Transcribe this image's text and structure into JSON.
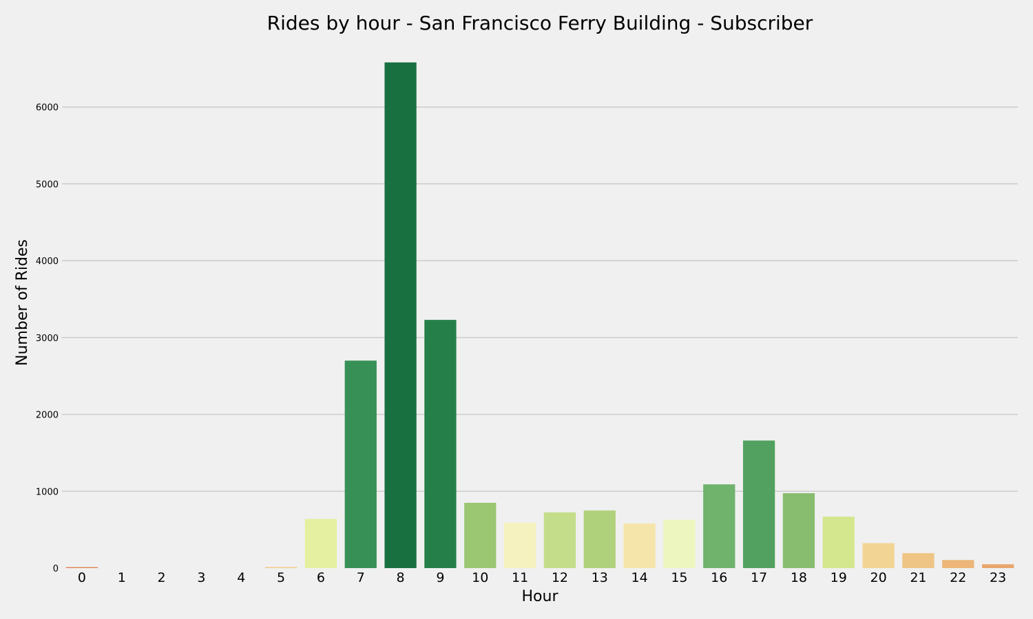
{
  "chart_data": {
    "type": "bar",
    "title": "Rides by hour - San Francisco Ferry Building - Subscriber",
    "xlabel": "Hour",
    "ylabel": "Number of Rides",
    "categories": [
      "0",
      "1",
      "2",
      "3",
      "4",
      "5",
      "6",
      "7",
      "8",
      "9",
      "10",
      "11",
      "12",
      "13",
      "14",
      "15",
      "16",
      "17",
      "18",
      "19",
      "20",
      "21",
      "22",
      "23"
    ],
    "values": [
      12,
      0,
      0,
      0,
      0,
      8,
      640,
      2700,
      6580,
      3230,
      850,
      590,
      725,
      750,
      580,
      630,
      1090,
      1660,
      975,
      670,
      325,
      195,
      105,
      50
    ],
    "colors": [
      "#e08a5c",
      "#e89866",
      "#eba56f",
      "#eeb27a",
      "#f0bd80",
      "#f3c98a",
      "#e5f0a0",
      "#379157",
      "#187040",
      "#248048",
      "#9bc773",
      "#f5f2bf",
      "#c4dd8a",
      "#b0d17c",
      "#f5e5ab",
      "#eef6c0",
      "#6fb36c",
      "#52a160",
      "#88bd6f",
      "#d4e68e",
      "#f2d595",
      "#efc585",
      "#ecb678",
      "#e9a66c"
    ],
    "ylim": [
      0,
      6900
    ],
    "yticks": [
      0,
      1000,
      2000,
      3000,
      4000,
      5000,
      6000
    ],
    "grid": true,
    "gridColor": "#cbcbcb",
    "legend": "none"
  }
}
